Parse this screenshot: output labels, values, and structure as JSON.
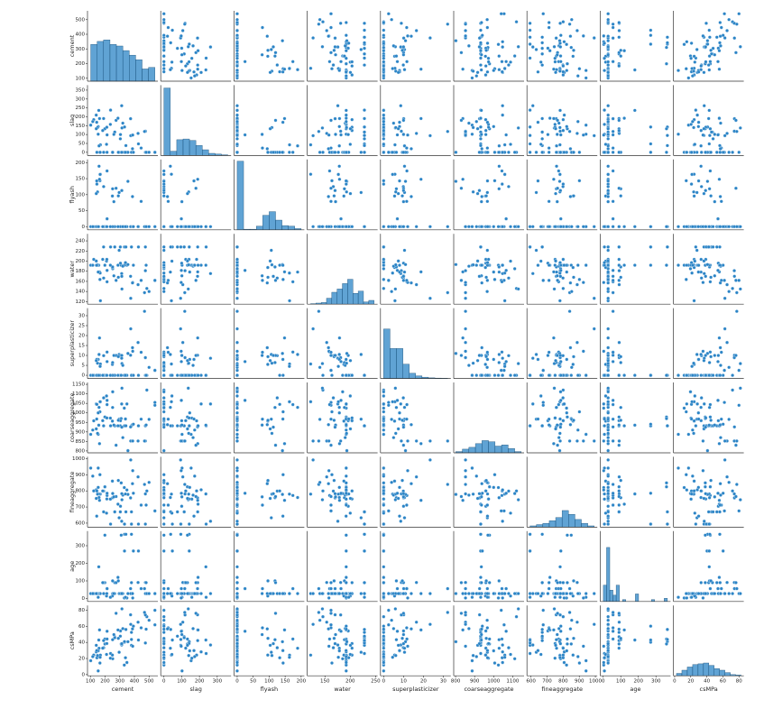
{
  "chart_data": {
    "type": "pairplot",
    "color": "#2b84c6",
    "edge_color": "#ffffff",
    "variables": [
      {
        "name": "cement",
        "lim": [
          80,
          560
        ],
        "xticks": [
          100,
          200,
          300,
          400,
          500
        ],
        "yticks": [
          100,
          200,
          300,
          400,
          500
        ],
        "bins": [
          102,
          145.8,
          189.6,
          233.4,
          277.2,
          321,
          364.8,
          408.6,
          452.4,
          496.2,
          540
        ],
        "counts": [
          120,
          130,
          135,
          120,
          115,
          100,
          85,
          70,
          40,
          45
        ],
        "count_lim": [
          0,
          230
        ]
      },
      {
        "name": "slag",
        "lim": [
          -18,
          378
        ],
        "xticks": [
          0,
          100,
          200,
          300
        ],
        "yticks": [
          0,
          50,
          100,
          150,
          200,
          250,
          300,
          350
        ],
        "bins": [
          0,
          35.9,
          71.9,
          107.8,
          143.8,
          179.7,
          215.6,
          251.6,
          287.5,
          323.5,
          359.4
        ],
        "counts": [
          470,
          30,
          110,
          115,
          105,
          70,
          40,
          15,
          10,
          5
        ],
        "count_lim": [
          0,
          490
        ]
      },
      {
        "name": "flyash",
        "lim": [
          -10,
          210
        ],
        "xticks": [
          0,
          50,
          100,
          150,
          200
        ],
        "yticks": [
          0,
          50,
          100,
          150,
          200
        ],
        "bins": [
          0,
          20,
          40,
          60,
          80,
          100,
          120,
          140,
          160,
          180,
          200.1
        ],
        "counts": [
          566,
          5,
          5,
          30,
          120,
          150,
          80,
          35,
          30,
          10
        ],
        "count_lim": [
          0,
          580
        ]
      },
      {
        "name": "water",
        "lim": [
          115,
          254
        ],
        "xticks": [
          150,
          200,
          250
        ],
        "yticks": [
          120,
          140,
          160,
          180,
          200,
          220,
          240
        ],
        "bins": [
          121.8,
          132.2,
          142.7,
          153.1,
          163.5,
          174,
          184.4,
          194.8,
          205.3,
          215.7,
          226.1,
          236.6,
          247
        ],
        "counts": [
          5,
          10,
          15,
          55,
          110,
          140,
          190,
          230,
          100,
          120,
          20,
          35
        ],
        "count_lim": [
          0,
          650
        ]
      },
      {
        "name": "superplasticizer",
        "lim": [
          -1.6,
          33.8
        ],
        "xticks": [
          0,
          10,
          20,
          30
        ],
        "yticks": [
          0,
          5,
          10,
          15,
          20,
          25,
          30
        ],
        "bins": [
          0,
          3.2,
          6.4,
          9.7,
          12.9,
          16.1,
          19.3,
          22.5,
          25.8,
          29,
          32.2
        ],
        "counts": [
          380,
          230,
          230,
          110,
          40,
          20,
          10,
          5,
          3,
          2
        ],
        "count_lim": [
          0,
          540
        ]
      },
      {
        "name": "coarseaggregate",
        "lim": [
          790,
          1160
        ],
        "xticks": [
          800,
          900,
          1000,
          1100
        ],
        "yticks": [
          800,
          850,
          900,
          950,
          1000,
          1050,
          1100,
          1150
        ],
        "bins": [
          801,
          835.4,
          869.8,
          904.2,
          938.6,
          973,
          1007.4,
          1041.8,
          1076.2,
          1110.6,
          1145
        ],
        "counts": [
          20,
          60,
          90,
          150,
          200,
          180,
          110,
          130,
          70,
          20
        ],
        "count_lim": [
          0,
          1150
        ]
      },
      {
        "name": "fineaggregate",
        "lim": [
          575,
          1012
        ],
        "xticks": [
          600,
          700,
          800,
          900,
          1000
        ],
        "yticks": [
          600,
          700,
          800,
          900,
          1000
        ],
        "bins": [
          594,
          633.9,
          673.7,
          713.6,
          753.4,
          793.3,
          833.2,
          873,
          912.9,
          952.7,
          992.6
        ],
        "counts": [
          20,
          40,
          60,
          100,
          150,
          260,
          200,
          120,
          60,
          20
        ],
        "count_lim": [
          0,
          1100
        ]
      },
      {
        "name": "age",
        "lim": [
          -17,
          383
        ],
        "xticks": [
          0,
          100,
          200,
          300
        ],
        "yticks": [
          0,
          100,
          200,
          300
        ],
        "bins": [
          1,
          19.2,
          37.4,
          55.6,
          73.8,
          92,
          110.2,
          128.4,
          146.6,
          164.8,
          183,
          201.2,
          219.4,
          237.6,
          255.8,
          274,
          292.2,
          310.4,
          328.6,
          346.8,
          365
        ],
        "counts": [
          130,
          430,
          90,
          50,
          130,
          0,
          15,
          0,
          0,
          0,
          60,
          0,
          0,
          0,
          0,
          15,
          0,
          0,
          0,
          25
        ],
        "count_lim": [
          0,
          560
        ]
      },
      {
        "name": "csMPa",
        "lim": [
          -1.5,
          86
        ],
        "xticks": [
          0,
          20,
          40,
          60,
          80
        ],
        "yticks": [
          0,
          20,
          40,
          60,
          80
        ],
        "bins": [
          2.3,
          9,
          15.7,
          22.4,
          29.1,
          35.8,
          42.5,
          49.1,
          55.8,
          62.5,
          69.2,
          75.9,
          82.6
        ],
        "counts": [
          30,
          70,
          110,
          140,
          150,
          160,
          130,
          90,
          70,
          40,
          15,
          10
        ],
        "count_lim": [
          0,
          880
        ]
      }
    ],
    "rows": [
      [
        540,
        0,
        0,
        162,
        2.5,
        1040,
        676,
        28,
        79.99
      ],
      [
        540,
        0,
        0,
        162,
        2.5,
        1055,
        676,
        28,
        61.89
      ],
      [
        332.5,
        142.5,
        0,
        228,
        0,
        932,
        594,
        270,
        40.27
      ],
      [
        332.5,
        142.5,
        0,
        228,
        0,
        932,
        594,
        365,
        41.05
      ],
      [
        198.6,
        132.4,
        0,
        192,
        0,
        978.4,
        825.5,
        360,
        44.3
      ],
      [
        266,
        114,
        0,
        228,
        0,
        932,
        670,
        90,
        47.03
      ],
      [
        380,
        95,
        0,
        228,
        0,
        932,
        594,
        365,
        43.7
      ],
      [
        380,
        95,
        0,
        228,
        0,
        932,
        594,
        28,
        36.45
      ],
      [
        266,
        114,
        0,
        228,
        0,
        932,
        670,
        28,
        45.85
      ],
      [
        475,
        0,
        0,
        228,
        0,
        932,
        594,
        28,
        39.29
      ],
      [
        198.6,
        132.4,
        0,
        192,
        0,
        978.4,
        825.5,
        90,
        38.07
      ],
      [
        427.5,
        47.5,
        0,
        228,
        0,
        932,
        594,
        270,
        43.01
      ],
      [
        190,
        190,
        0,
        228,
        0,
        932,
        670,
        90,
        42.33
      ],
      [
        304,
        76,
        0,
        228,
        0,
        932,
        670,
        28,
        47.81
      ],
      [
        139.6,
        209.4,
        0,
        192,
        0,
        1047,
        806.9,
        28,
        28.24
      ],
      [
        342,
        38,
        0,
        228,
        0,
        932,
        670,
        365,
        56.14
      ],
      [
        380,
        0,
        0,
        228,
        0,
        932,
        670,
        90,
        52.52
      ],
      [
        237.5,
        237.5,
        0,
        228,
        0,
        932,
        594,
        7,
        26.26
      ],
      [
        168,
        42.1,
        163.8,
        121.8,
        5.7,
        1058.7,
        780.1,
        28,
        24.24
      ],
      [
        190.3,
        0,
        125.2,
        166.6,
        9.9,
        1079,
        798.9,
        28,
        33.4
      ],
      [
        485,
        0,
        0,
        146,
        0,
        1120,
        800,
        28,
        71.99
      ],
      [
        374,
        189.2,
        0,
        170.1,
        10.1,
        926.1,
        756.7,
        56,
        74.36
      ],
      [
        313.3,
        262.2,
        0,
        175.5,
        8.6,
        1046.9,
        611.8,
        28,
        36.8
      ],
      [
        425,
        106.3,
        0,
        153.5,
        16.5,
        852.1,
        887.1,
        91,
        65.2
      ],
      [
        375,
        93.8,
        0,
        126.6,
        23.4,
        852.1,
        992.6,
        28,
        62.5
      ],
      [
        475,
        118.8,
        0,
        181.1,
        8.9,
        852.1,
        781.5,
        91,
        74.19
      ],
      [
        469,
        117.2,
        0,
        137.8,
        32.2,
        852.1,
        840.5,
        56,
        77.3
      ],
      [
        102,
        153,
        0,
        192,
        0,
        887,
        942,
        28,
        17.28
      ],
      [
        158.8,
        36.2,
        189,
        178.4,
        10.5,
        1029,
        759,
        28,
        32.77
      ],
      [
        213.5,
        0,
        174.2,
        159.2,
        11.7,
        1043.6,
        771.9,
        56,
        44.28
      ],
      [
        296,
        0,
        106.7,
        221.4,
        10.5,
        967,
        633,
        28,
        27.77
      ],
      [
        153,
        102,
        0,
        192,
        0,
        887,
        942,
        7,
        4.57
      ],
      [
        252,
        0,
        0,
        185,
        0,
        1111,
        784,
        28,
        19.69
      ],
      [
        310,
        0,
        0,
        192,
        0,
        970,
        850,
        360,
        38.11
      ],
      [
        331,
        0,
        0,
        192,
        0,
        1025,
        821,
        3,
        11.85
      ],
      [
        250,
        0,
        95.7,
        187.4,
        5.5,
        956.9,
        861.2,
        14,
        24.28
      ],
      [
        251.4,
        0,
        118.3,
        188.5,
        6.4,
        1028.4,
        757.7,
        100,
        43.39
      ],
      [
        165,
        0,
        143.6,
        163.8,
        0,
        1005.6,
        900.9,
        28,
        14.4
      ],
      [
        144,
        0,
        133,
        192,
        0,
        1045,
        800,
        28,
        20.94
      ],
      [
        500,
        0,
        0,
        140,
        4,
        966,
        853,
        28,
        67.57
      ],
      [
        162,
        190.1,
        148.1,
        178.8,
        18.8,
        838.1,
        741.4,
        28,
        55.55
      ],
      [
        275,
        180,
        120,
        162,
        10,
        830,
        765,
        90,
        76.24
      ],
      [
        315,
        137,
        0,
        145,
        5.9,
        1130,
        745,
        28,
        81.75
      ],
      [
        166.1,
        0,
        163.3,
        176.5,
        4.5,
        1058.6,
        780.1,
        28,
        21.54
      ],
      [
        349,
        0,
        0,
        192,
        0,
        1047,
        806,
        3,
        15.05
      ],
      [
        236,
        157,
        0,
        192,
        0,
        972.6,
        749.1,
        7,
        20.42
      ],
      [
        157,
        236,
        0,
        192,
        0,
        935.4,
        781.2,
        180,
        43.01
      ],
      [
        122.6,
        183.9,
        0,
        203.5,
        0,
        958.2,
        800.1,
        28,
        24.29
      ],
      [
        183.9,
        122.6,
        0,
        203.5,
        0,
        959.2,
        800,
        90,
        32.9
      ],
      [
        305,
        100,
        0,
        196,
        10,
        959,
        705,
        28,
        54.32
      ],
      [
        210,
        45,
        0,
        200,
        0,
        1089,
        662,
        14,
        25.1
      ],
      [
        388.6,
        97.1,
        0,
        157.9,
        12.1,
        852.1,
        925.7,
        3,
        35.3
      ],
      [
        446,
        24,
        79,
        162,
        11.6,
        967,
        712,
        56,
        58.14
      ],
      [
        387,
        20,
        94,
        157,
        13.9,
        938,
        845,
        28,
        56.85
      ],
      [
        355.9,
        0,
        141.6,
        193.3,
        11,
        801.4,
        778.4,
        28,
        40.87
      ],
      [
        153.1,
        145,
        0,
        178.5,
        8,
        1000,
        822,
        28,
        29.59
      ],
      [
        321,
        164,
        0,
        190,
        5,
        870,
        774,
        28,
        57.21
      ],
      [
        212,
        141.3,
        0,
        203.5,
        0,
        973.4,
        750,
        28,
        38.7
      ],
      [
        148.5,
        139.4,
        108.6,
        192.7,
        6.1,
        892.4,
        780,
        28,
        23.7
      ],
      [
        290.4,
        0,
        96.2,
        168.1,
        9.4,
        961.2,
        865,
        100,
        45.08
      ],
      [
        143,
        169,
        143,
        191.8,
        8,
        967.6,
        643.5,
        28,
        29.87
      ],
      [
        260,
        101,
        78,
        171,
        10,
        936,
        763,
        28,
        49.77
      ],
      [
        213.7,
        98.1,
        24.5,
        181.7,
        6.9,
        1065.8,
        785.4,
        56,
        53.9
      ],
      [
        288,
        192,
        0,
        192,
        0,
        932,
        717.8,
        120,
        55.51
      ],
      [
        139.9,
        132.6,
        103.3,
        200.3,
        7.4,
        916,
        753.4,
        28,
        36.44
      ],
      [
        339,
        0,
        0,
        197,
        0,
        968,
        781,
        7,
        20.97
      ],
      [
        393,
        0,
        0,
        192,
        0,
        940.6,
        785.6,
        270,
        60.29
      ],
      [
        480,
        0,
        0,
        192,
        0,
        936.2,
        712.2,
        90,
        56.51
      ],
      [
        314,
        0,
        113,
        170,
        10,
        925,
        783,
        28,
        38.46
      ],
      [
        116,
        173,
        0,
        192,
        0,
        909.8,
        891.9,
        28,
        22.35
      ]
    ]
  }
}
